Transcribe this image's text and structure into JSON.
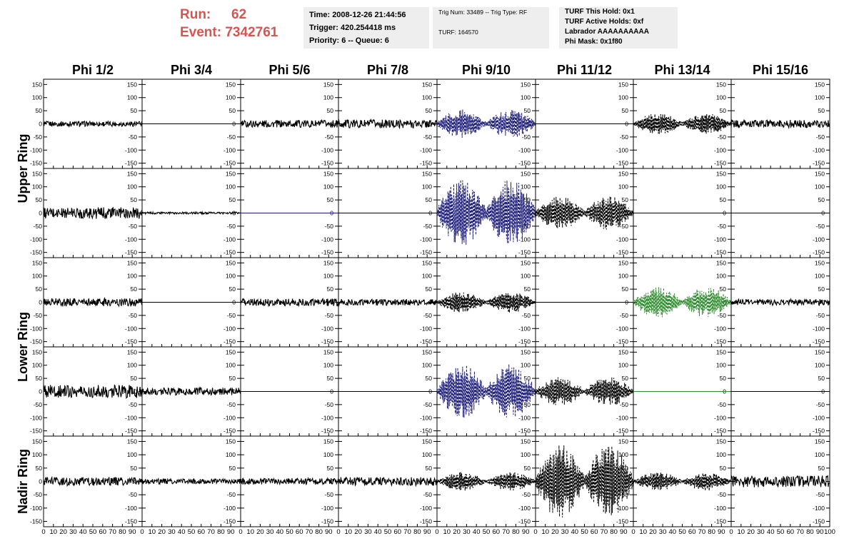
{
  "header": {
    "run_label": "Run:",
    "run_value": "62",
    "event_label": "Event:",
    "event_value": "7342761",
    "time_line": "Time: 2008-12-26 21:44:56",
    "trigger_line": "Trigger: 420.254418 ms",
    "priority_line": "Priority: 6 -- Queue: 6",
    "trig_num_line": "Trig Num: 33489 -- Trig Type: RF",
    "turf_line": "TURF: 164570",
    "turf_this_hold": "TURF This Hold: 0x1",
    "turf_active_holds": "TURF Active Holds: 0xf",
    "labrador": "Labrador AAAAAAAAAA",
    "phi_mask": "Phi Mask: 0x1f80"
  },
  "chart_data": {
    "type": "line",
    "column_titles": [
      "Phi 1/2",
      "Phi 3/4",
      "Phi 5/6",
      "Phi 7/8",
      "Phi 9/10",
      "Phi 11/12",
      "Phi 13/14",
      "Phi 15/16"
    ],
    "ring_labels": [
      "Upper Ring",
      "Lower Ring",
      "Nadir Ring"
    ],
    "ylim": [
      -170,
      170
    ],
    "xlim": [
      0,
      100
    ],
    "y_ticks": [
      150,
      100,
      50,
      0,
      -50,
      -100,
      -150
    ],
    "x_tick_labels": [
      "0",
      "10",
      "20",
      "30",
      "40",
      "50",
      "60",
      "70",
      "80",
      "90",
      "100"
    ],
    "colors": {
      "black": "#000000",
      "blue": "#1c1c7a",
      "green": "#2e8b2e",
      "red_text": "#d9534f",
      "box": "#eeeeee"
    },
    "panel_grid": [
      [
        {
          "amp": 10,
          "env": "flat",
          "color": "black",
          "style": "solid"
        },
        {
          "amp": 0,
          "env": "flat",
          "color": "black",
          "style": "solid"
        },
        {
          "amp": 14,
          "env": "flat",
          "color": "black",
          "style": "solid"
        },
        {
          "amp": 16,
          "env": "flat",
          "color": "black",
          "style": "solid"
        },
        {
          "amp": 55,
          "env": "double",
          "color": "blue",
          "style": "dashed"
        },
        {
          "amp": 0,
          "env": "flat",
          "color": "black",
          "style": "solid"
        },
        {
          "amp": 40,
          "env": "double",
          "color": "black",
          "style": "dashed"
        },
        {
          "amp": 15,
          "env": "flat",
          "color": "black",
          "style": "solid"
        }
      ],
      [
        {
          "amp": 22,
          "env": "flat",
          "color": "black",
          "style": "solid"
        },
        {
          "amp": 4,
          "env": "flat",
          "color": "black",
          "style": "solid"
        },
        {
          "amp": 0,
          "env": "flat",
          "color": "blue",
          "style": "solid"
        },
        {
          "amp": 0,
          "env": "flat",
          "color": "black",
          "style": "solid"
        },
        {
          "amp": 130,
          "env": "double",
          "color": "blue",
          "style": "dashed"
        },
        {
          "amp": 65,
          "env": "double",
          "color": "black",
          "style": "dashed"
        },
        {
          "amp": 0,
          "env": "flat",
          "color": "black",
          "style": "solid"
        },
        {
          "amp": 0,
          "env": "flat",
          "color": "black",
          "style": "solid"
        }
      ],
      [
        {
          "amp": 16,
          "env": "flat",
          "color": "black",
          "style": "solid"
        },
        {
          "amp": 0,
          "env": "flat",
          "color": "black",
          "style": "solid"
        },
        {
          "amp": 14,
          "env": "flat",
          "color": "black",
          "style": "solid"
        },
        {
          "amp": 12,
          "env": "flat",
          "color": "black",
          "style": "solid"
        },
        {
          "amp": 40,
          "env": "double",
          "color": "black",
          "style": "dashed"
        },
        {
          "amp": 0,
          "env": "flat",
          "color": "black",
          "style": "solid"
        },
        {
          "amp": 60,
          "env": "double",
          "color": "green",
          "style": "dashed"
        },
        {
          "amp": 12,
          "env": "flat",
          "color": "black",
          "style": "solid"
        }
      ],
      [
        {
          "amp": 25,
          "env": "flat",
          "color": "black",
          "style": "solid"
        },
        {
          "amp": 14,
          "env": "flat",
          "color": "black",
          "style": "solid"
        },
        {
          "amp": 0,
          "env": "flat",
          "color": "black",
          "style": "solid"
        },
        {
          "amp": 0,
          "env": "flat",
          "color": "black",
          "style": "solid"
        },
        {
          "amp": 105,
          "env": "double",
          "color": "blue",
          "style": "dashed"
        },
        {
          "amp": 55,
          "env": "double",
          "color": "black",
          "style": "dashed"
        },
        {
          "amp": 0,
          "env": "flat",
          "color": "green",
          "style": "solid"
        },
        {
          "amp": 0,
          "env": "flat",
          "color": "black",
          "style": "solid"
        }
      ],
      [
        {
          "amp": 16,
          "env": "flat",
          "color": "black",
          "style": "solid"
        },
        {
          "amp": 10,
          "env": "flat",
          "color": "black",
          "style": "solid"
        },
        {
          "amp": 12,
          "env": "flat",
          "color": "black",
          "style": "solid"
        },
        {
          "amp": 16,
          "env": "flat",
          "color": "black",
          "style": "solid"
        },
        {
          "amp": 35,
          "env": "double",
          "color": "black",
          "style": "dashed"
        },
        {
          "amp": 140,
          "env": "double",
          "color": "black",
          "style": "dashed"
        },
        {
          "amp": 35,
          "env": "double",
          "color": "black",
          "style": "dashed"
        },
        {
          "amp": 22,
          "env": "flat",
          "color": "black",
          "style": "solid"
        }
      ]
    ]
  }
}
